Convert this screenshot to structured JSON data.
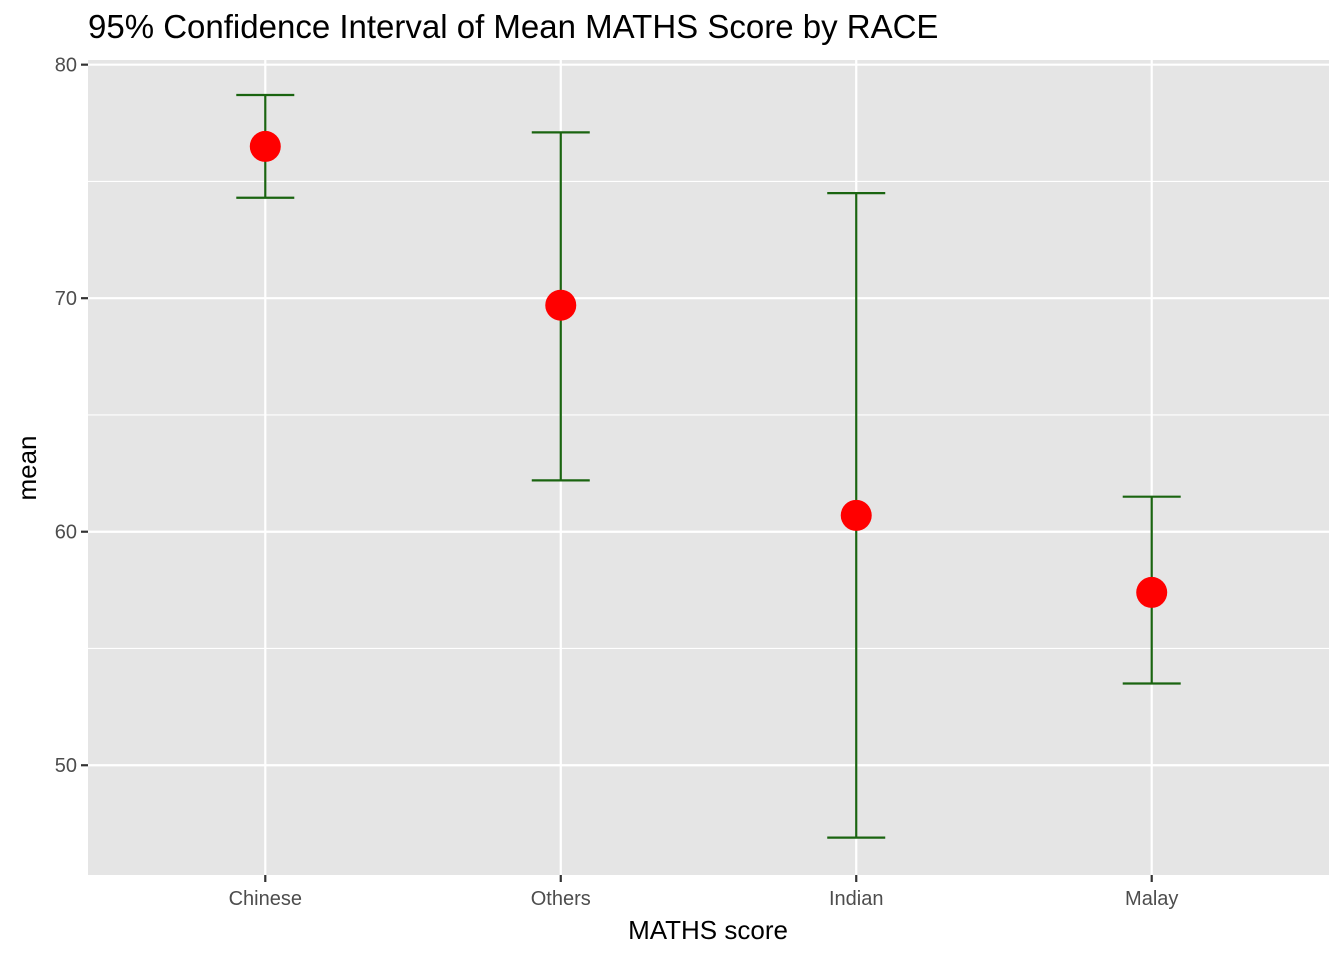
{
  "chart_data": {
    "type": "errorbar",
    "title": "95% Confidence Interval of Mean MATHS Score by RACE",
    "xlabel": "MATHS score",
    "ylabel": "mean",
    "categories": [
      "Chinese",
      "Others",
      "Indian",
      "Malay"
    ],
    "mean": [
      76.5,
      69.7,
      60.7,
      57.4
    ],
    "ci_lower": [
      74.3,
      62.2,
      46.9,
      53.5
    ],
    "ci_upper": [
      78.7,
      77.1,
      74.5,
      61.5
    ],
    "y_ticks": [
      50,
      60,
      70,
      80
    ],
    "ylim": [
      45.3,
      80.2
    ],
    "grid": true,
    "colors": {
      "panel_background": "#e5e5e5",
      "grid": "#ffffff",
      "point": "#ff0000",
      "errorbar": "#1a6410",
      "tick_label": "#4d4d4d",
      "tick_mark": "#333333"
    }
  }
}
